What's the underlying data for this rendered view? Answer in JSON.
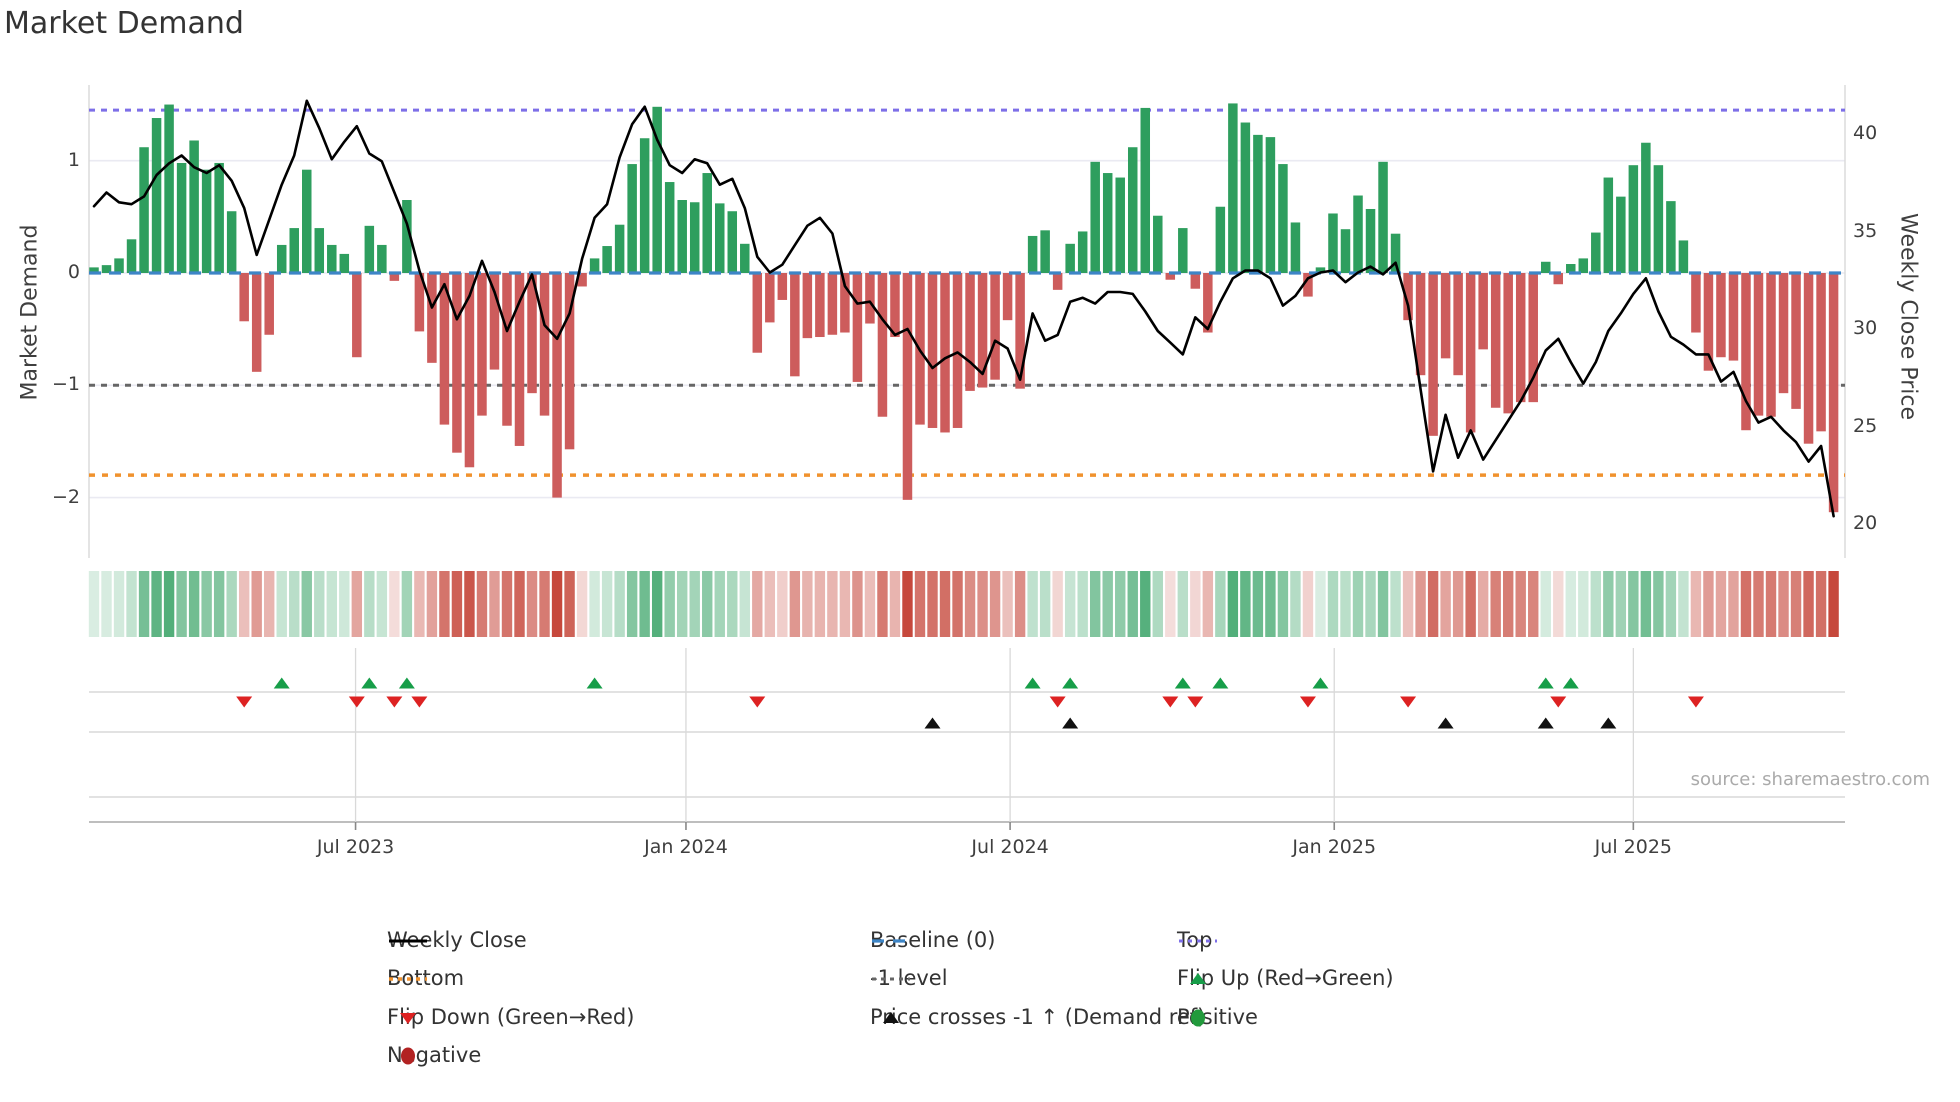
{
  "title": "Market Demand",
  "source_text": "source: sharemaestro.com",
  "axes": {
    "left_label": "Market Demand",
    "right_label": "Weekly Close Price",
    "left_ticks": [
      "1",
      "0",
      "−1",
      "−2"
    ],
    "left_tick_values": [
      1,
      0,
      -1,
      -2
    ],
    "right_ticks": [
      "40",
      "35",
      "30",
      "25",
      "20"
    ],
    "right_tick_values": [
      40,
      35,
      30,
      25,
      20
    ],
    "x_ticks": [
      {
        "label": "Jul 2023",
        "i": 20.9
      },
      {
        "label": "Jan 2024",
        "i": 47.3
      },
      {
        "label": "Jul 2024",
        "i": 73.2
      },
      {
        "label": "Jan 2025",
        "i": 99.1
      },
      {
        "label": "Jul 2025",
        "i": 123.0
      }
    ]
  },
  "chart_data": {
    "type": "bar-line-combo",
    "n": 140,
    "x_unit": "weeks (Feb 2023 - Oct 2025)",
    "demand_ylim": [
      -2.54,
      1.67
    ],
    "price_ylim": [
      18.3,
      42.5
    ],
    "grid_demand_values": [
      1,
      0,
      -1,
      -2
    ],
    "ref_lines": {
      "baseline": 0,
      "top": 1.45,
      "minus_one": -1,
      "bottom": -1.8
    },
    "series": [
      {
        "name": "Market Demand",
        "type": "bar",
        "values": [
          0.05,
          0.07,
          0.13,
          0.3,
          1.12,
          1.38,
          1.5,
          0.98,
          1.18,
          0.92,
          0.98,
          0.55,
          -0.43,
          -0.88,
          -0.55,
          0.25,
          0.4,
          0.92,
          0.4,
          0.25,
          0.17,
          -0.75,
          0.42,
          0.25,
          -0.07,
          0.65,
          -0.52,
          -0.8,
          -1.35,
          -1.6,
          -1.73,
          -1.27,
          -0.86,
          -1.36,
          -1.54,
          -1.07,
          -1.27,
          -2.0,
          -1.57,
          -0.12,
          0.13,
          0.24,
          0.43,
          0.97,
          1.2,
          1.48,
          0.81,
          0.65,
          0.63,
          0.89,
          0.62,
          0.55,
          0.26,
          -0.71,
          -0.44,
          -0.24,
          -0.92,
          -0.58,
          -0.57,
          -0.55,
          -0.53,
          -0.97,
          -0.45,
          -1.28,
          -0.57,
          -2.02,
          -1.35,
          -1.38,
          -1.42,
          -1.38,
          -1.05,
          -1.02,
          -0.95,
          -0.42,
          -1.03,
          0.33,
          0.38,
          -0.15,
          0.26,
          0.37,
          0.99,
          0.89,
          0.85,
          1.12,
          1.47,
          0.51,
          -0.06,
          0.4,
          -0.14,
          -0.53,
          0.59,
          1.51,
          1.34,
          1.23,
          1.21,
          0.97,
          0.45,
          -0.21,
          0.05,
          0.53,
          0.39,
          0.69,
          0.57,
          0.99,
          0.35,
          -0.42,
          -0.91,
          -1.45,
          -0.76,
          -0.91,
          -1.42,
          -0.68,
          -1.2,
          -1.25,
          -1.15,
          -1.15,
          0.1,
          -0.1,
          0.08,
          0.13,
          0.36,
          0.85,
          0.68,
          0.96,
          1.16,
          0.96,
          0.64,
          0.29,
          -0.53,
          -0.87,
          -0.75,
          -0.78,
          -1.4,
          -1.27,
          -1.28,
          -1.07,
          -1.21,
          -1.52,
          -1.41,
          -2.13
        ]
      },
      {
        "name": "Weekly Close",
        "type": "line",
        "values": [
          36.3,
          37.0,
          36.5,
          36.4,
          36.8,
          37.9,
          38.5,
          38.9,
          38.3,
          38.0,
          38.4,
          37.6,
          36.2,
          33.8,
          35.6,
          37.4,
          38.9,
          41.7,
          40.3,
          38.7,
          39.6,
          40.4,
          39.0,
          38.6,
          37.0,
          35.4,
          33.0,
          31.1,
          32.3,
          30.5,
          31.7,
          33.5,
          31.9,
          29.9,
          31.4,
          32.8,
          30.2,
          29.5,
          30.8,
          33.6,
          35.7,
          36.4,
          38.8,
          40.5,
          41.4,
          39.7,
          38.4,
          38.0,
          38.7,
          38.5,
          37.4,
          37.7,
          36.2,
          33.7,
          32.9,
          33.3,
          34.3,
          35.3,
          35.7,
          34.9,
          32.2,
          31.3,
          31.4,
          30.5,
          29.7,
          30.0,
          28.9,
          28.0,
          28.5,
          28.8,
          28.3,
          27.7,
          29.4,
          29.0,
          27.4,
          30.8,
          29.4,
          29.7,
          31.4,
          31.6,
          31.3,
          31.9,
          31.9,
          31.8,
          30.9,
          29.9,
          29.3,
          28.7,
          30.6,
          30.0,
          31.4,
          32.6,
          33.0,
          33.0,
          32.6,
          31.2,
          31.7,
          32.6,
          32.9,
          33.0,
          32.4,
          32.9,
          33.2,
          32.8,
          33.4,
          31.2,
          26.9,
          22.7,
          25.6,
          23.4,
          24.8,
          23.3,
          24.3,
          25.3,
          26.3,
          27.5,
          28.9,
          29.5,
          28.3,
          27.2,
          28.3,
          29.9,
          30.8,
          31.8,
          32.6,
          30.9,
          29.6,
          29.2,
          28.7,
          28.7,
          27.3,
          27.8,
          26.3,
          25.2,
          25.5,
          24.8,
          24.2,
          23.2,
          24.0,
          20.4
        ]
      }
    ],
    "markers": {
      "flip_up": [
        15,
        22,
        25,
        40,
        75,
        78,
        87,
        90,
        98,
        116,
        118
      ],
      "flip_down": [
        12,
        21,
        24,
        26,
        53,
        77,
        86,
        88,
        97,
        105,
        117,
        128
      ],
      "price_cross": [
        67,
        78,
        108,
        116,
        121
      ]
    },
    "heatmap": "cells shaded by Market Demand value (green positive, red negative, intensity = magnitude)"
  },
  "legend": {
    "items": [
      {
        "label": "Weekly Close",
        "swatch": "line-black",
        "col": 0,
        "row": 0
      },
      {
        "label": "Bottom",
        "swatch": "dotted-orange",
        "col": 0,
        "row": 1
      },
      {
        "label": "Flip Down (Green→Red)",
        "swatch": "tri-down-red",
        "col": 0,
        "row": 2
      },
      {
        "label": "Negative",
        "swatch": "circle-darkred",
        "col": 0,
        "row": 3
      },
      {
        "label": "Baseline (0)",
        "swatch": "dashed-blue",
        "col": 1,
        "row": 0
      },
      {
        "label": "-1 level",
        "swatch": "dotted-gray",
        "col": 1,
        "row": 1
      },
      {
        "label": "Price crosses -1 ↑ (Demand ref)",
        "swatch": "tri-up-black",
        "col": 1,
        "row": 2
      },
      {
        "label": "Top",
        "swatch": "dotted-purple",
        "col": 2,
        "row": 0
      },
      {
        "label": "Flip Up (Red→Green)",
        "swatch": "tri-up-green",
        "col": 2,
        "row": 1
      },
      {
        "label": "Positive",
        "swatch": "circle-green",
        "col": 2,
        "row": 2
      }
    ]
  },
  "colors": {
    "bar_positive": "#2e9e5e",
    "bar_negative": "#cd5c5c",
    "baseline_blue": "#3d85c6",
    "top_purple": "#7d6fe8",
    "minus_one_gray": "#666666",
    "bottom_orange": "#f0922e",
    "price_line": "#000000",
    "flip_up_green": "#179e49",
    "flip_down_red": "#dd2222",
    "cross_black": "#111111",
    "positive_circle": "#229a3c",
    "negative_circle": "#b22222",
    "gridline": "#eaeaf2",
    "panel_line": "#d9d9d9",
    "axis_line": "#a9a9a9",
    "text": "#3f3f3f",
    "source": "#aaaaaa"
  }
}
